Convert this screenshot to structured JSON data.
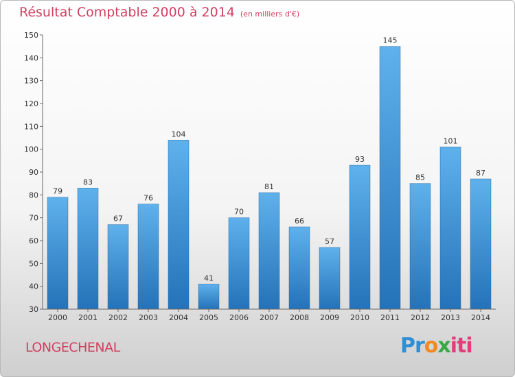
{
  "chart_data": {
    "type": "bar",
    "title": "Résultat Comptable 2000 à 2014",
    "subtitle": "(en milliers d'€)",
    "categories": [
      "2000",
      "2001",
      "2002",
      "2003",
      "2004",
      "2005",
      "2006",
      "2007",
      "2008",
      "2009",
      "2010",
      "2011",
      "2012",
      "2013",
      "2014"
    ],
    "values": [
      79,
      83,
      67,
      76,
      104,
      41,
      70,
      81,
      66,
      57,
      93,
      145,
      85,
      101,
      87
    ],
    "ylim": [
      30,
      150
    ],
    "yticks": [
      30,
      40,
      50,
      60,
      70,
      80,
      90,
      100,
      110,
      120,
      130,
      140,
      150
    ],
    "xlabel": "",
    "ylabel": "",
    "grid": false,
    "bar_color": "#3c96d8"
  },
  "footer": {
    "place_name": "LONGECHENAL",
    "logo_text": "Proxiti"
  },
  "colors": {
    "title": "#d14060",
    "bar_top": "#5fb1ec",
    "bar_bottom": "#2472b8"
  }
}
